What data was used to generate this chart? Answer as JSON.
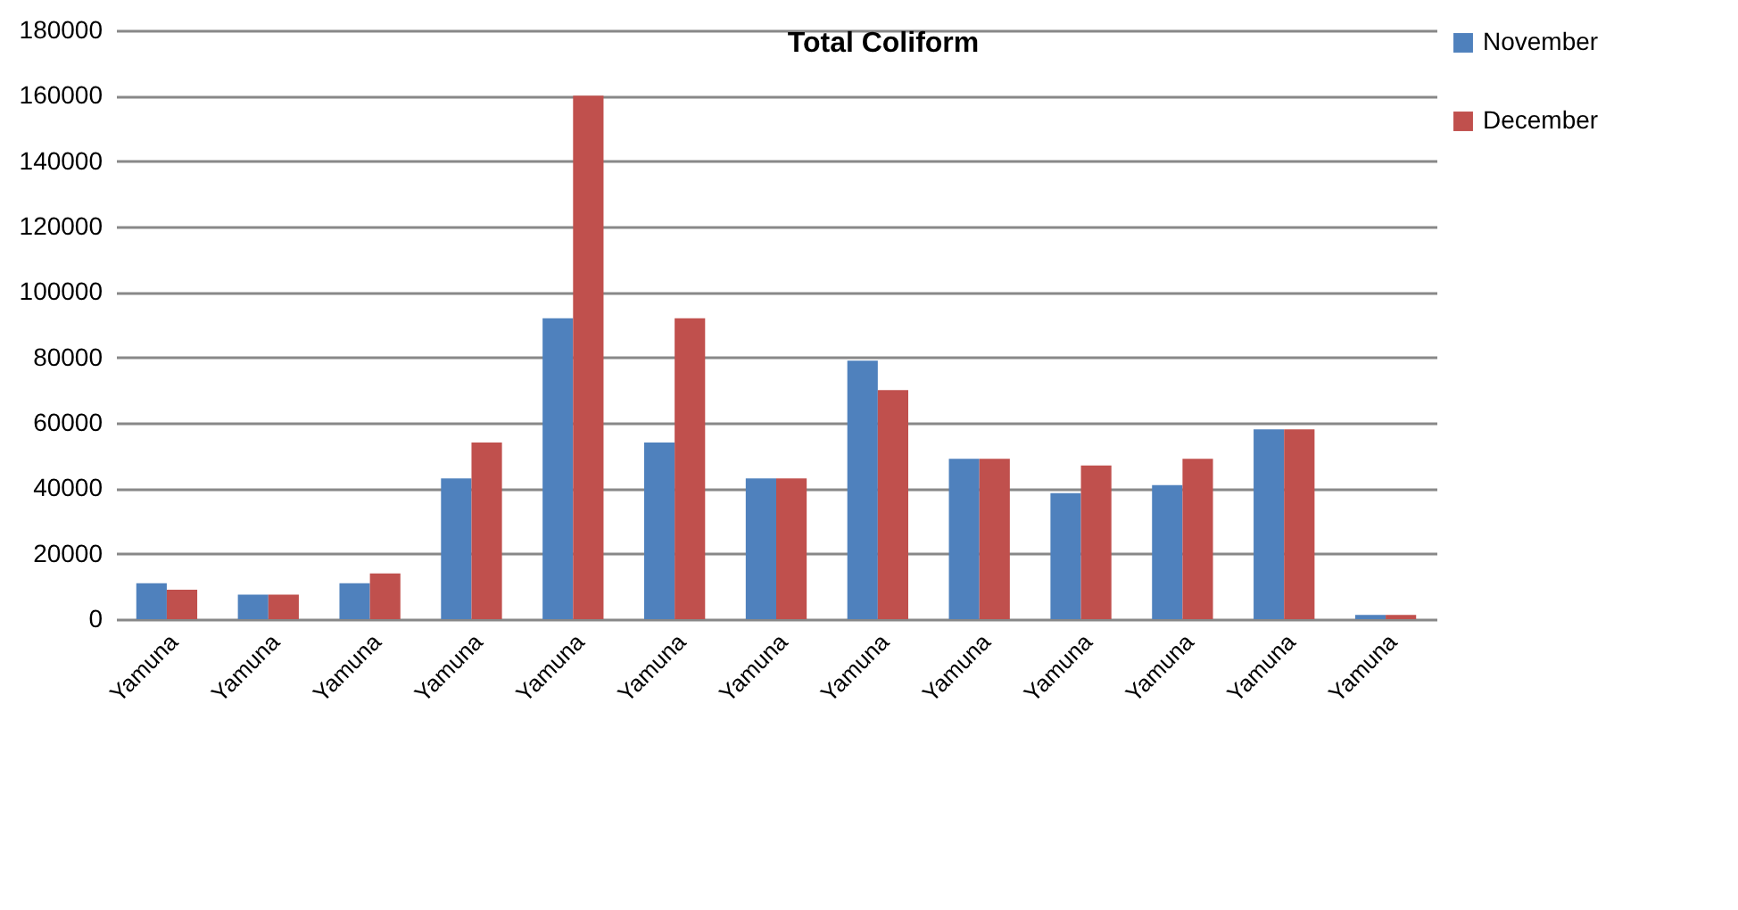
{
  "chart_data": {
    "type": "bar",
    "title": "Total Coliform",
    "categories": [
      "Yamuna",
      "Yamuna",
      "Yamuna",
      "Yamuna",
      "Yamuna",
      "Yamuna",
      "Yamuna",
      "Yamuna",
      "Yamuna",
      "Yamuna",
      "Yamuna",
      "Yamuna",
      "Yamuna"
    ],
    "series": [
      {
        "name": "November",
        "color": "#4f81bd",
        "values": [
          11000,
          7500,
          11000,
          43000,
          92000,
          54000,
          43000,
          79000,
          49000,
          38500,
          41000,
          58000,
          1300
        ]
      },
      {
        "name": "December",
        "color": "#c0504d",
        "values": [
          9000,
          7500,
          14000,
          54000,
          160000,
          92000,
          43000,
          70000,
          49000,
          47000,
          49000,
          58000,
          1300
        ]
      }
    ],
    "ylim": [
      0,
      180000
    ],
    "yticks": [
      0,
      20000,
      40000,
      60000,
      80000,
      100000,
      120000,
      140000,
      160000,
      180000
    ],
    "grid": "y",
    "legend": "right"
  }
}
